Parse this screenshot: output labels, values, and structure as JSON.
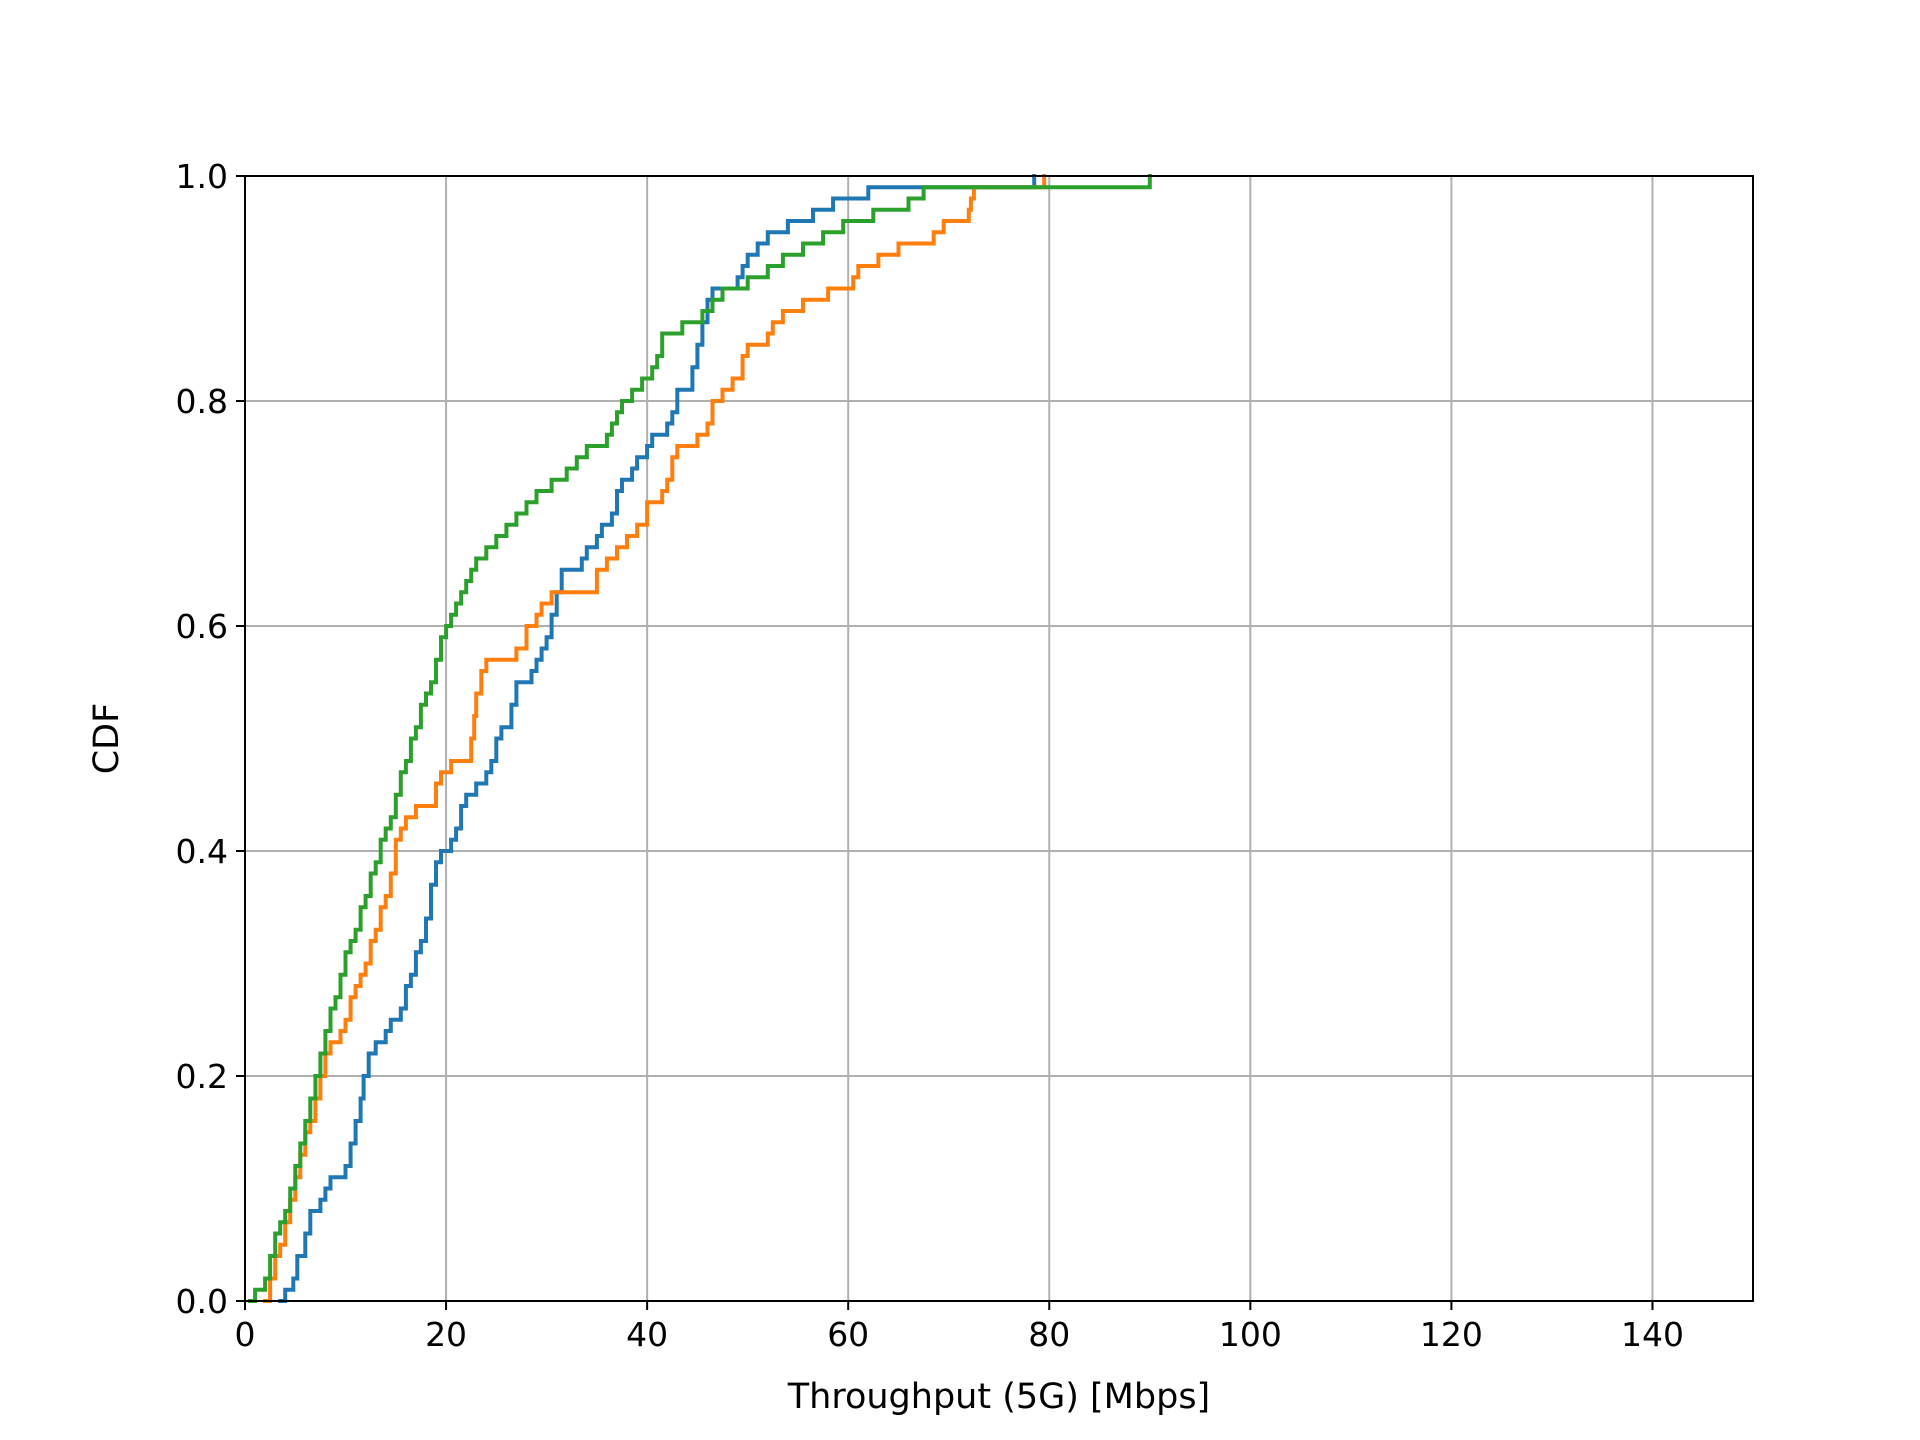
{
  "chart_data": {
    "type": "line",
    "step": true,
    "xlabel": "Throughput (5G) [Mbps]",
    "ylabel": "CDF",
    "xlim": [
      0,
      150
    ],
    "ylim": [
      0,
      1.0
    ],
    "xticks": [
      0,
      20,
      40,
      60,
      80,
      100,
      120,
      140
    ],
    "xtick_labels": [
      "0",
      "20",
      "40",
      "60",
      "80",
      "100",
      "120",
      "140"
    ],
    "yticks": [
      0.0,
      0.2,
      0.4,
      0.6,
      0.8,
      1.0
    ],
    "ytick_labels": [
      "0.0",
      "0.2",
      "0.4",
      "0.6",
      "0.8",
      "1.0"
    ],
    "grid": true,
    "colors": {
      "axis": "#000000",
      "grid": "#b0b0b0",
      "background": "#ffffff"
    },
    "series": [
      {
        "color": "#1f77b4",
        "points": [
          [
            3.5,
            0.0
          ],
          [
            4.0,
            0.01
          ],
          [
            4.8,
            0.02
          ],
          [
            5.2,
            0.04
          ],
          [
            6.0,
            0.06
          ],
          [
            6.5,
            0.08
          ],
          [
            7.5,
            0.09
          ],
          [
            8.0,
            0.1
          ],
          [
            8.5,
            0.11
          ],
          [
            10.0,
            0.12
          ],
          [
            10.5,
            0.14
          ],
          [
            11.0,
            0.16
          ],
          [
            11.5,
            0.18
          ],
          [
            11.8,
            0.2
          ],
          [
            12.3,
            0.22
          ],
          [
            13.0,
            0.23
          ],
          [
            14.0,
            0.24
          ],
          [
            14.5,
            0.25
          ],
          [
            15.5,
            0.26
          ],
          [
            16.0,
            0.28
          ],
          [
            16.5,
            0.29
          ],
          [
            17.0,
            0.31
          ],
          [
            17.5,
            0.32
          ],
          [
            18.0,
            0.34
          ],
          [
            18.5,
            0.37
          ],
          [
            19.0,
            0.39
          ],
          [
            19.5,
            0.4
          ],
          [
            20.5,
            0.41
          ],
          [
            21.0,
            0.42
          ],
          [
            21.5,
            0.44
          ],
          [
            22.0,
            0.45
          ],
          [
            23.0,
            0.46
          ],
          [
            24.0,
            0.47
          ],
          [
            24.5,
            0.48
          ],
          [
            25.0,
            0.5
          ],
          [
            25.5,
            0.51
          ],
          [
            26.5,
            0.53
          ],
          [
            27.0,
            0.55
          ],
          [
            28.5,
            0.56
          ],
          [
            29.0,
            0.57
          ],
          [
            29.5,
            0.58
          ],
          [
            30.0,
            0.59
          ],
          [
            30.5,
            0.61
          ],
          [
            31.0,
            0.63
          ],
          [
            31.5,
            0.65
          ],
          [
            33.5,
            0.66
          ],
          [
            34.0,
            0.67
          ],
          [
            35.0,
            0.68
          ],
          [
            35.5,
            0.69
          ],
          [
            36.5,
            0.7
          ],
          [
            37.0,
            0.72
          ],
          [
            37.5,
            0.73
          ],
          [
            38.5,
            0.74
          ],
          [
            39.0,
            0.75
          ],
          [
            40.0,
            0.76
          ],
          [
            40.5,
            0.77
          ],
          [
            42.0,
            0.78
          ],
          [
            42.5,
            0.79
          ],
          [
            43.0,
            0.81
          ],
          [
            44.5,
            0.83
          ],
          [
            45.0,
            0.85
          ],
          [
            45.5,
            0.87
          ],
          [
            46.0,
            0.89
          ],
          [
            46.5,
            0.9
          ],
          [
            49.0,
            0.91
          ],
          [
            49.5,
            0.92
          ],
          [
            50.0,
            0.93
          ],
          [
            51.0,
            0.94
          ],
          [
            52.0,
            0.95
          ],
          [
            54.0,
            0.96
          ],
          [
            56.5,
            0.97
          ],
          [
            58.5,
            0.98
          ],
          [
            62.0,
            0.99
          ],
          [
            70.0,
            0.99
          ],
          [
            78.5,
            1.0
          ]
        ]
      },
      {
        "color": "#ff7f0e",
        "points": [
          [
            2.0,
            0.0
          ],
          [
            2.5,
            0.02
          ],
          [
            3.0,
            0.04
          ],
          [
            3.5,
            0.05
          ],
          [
            4.0,
            0.07
          ],
          [
            4.5,
            0.09
          ],
          [
            5.0,
            0.11
          ],
          [
            5.5,
            0.13
          ],
          [
            6.0,
            0.15
          ],
          [
            6.5,
            0.16
          ],
          [
            7.0,
            0.18
          ],
          [
            7.5,
            0.2
          ],
          [
            8.0,
            0.22
          ],
          [
            8.5,
            0.23
          ],
          [
            9.5,
            0.24
          ],
          [
            10.0,
            0.25
          ],
          [
            10.5,
            0.27
          ],
          [
            11.0,
            0.28
          ],
          [
            11.5,
            0.29
          ],
          [
            12.0,
            0.3
          ],
          [
            12.5,
            0.32
          ],
          [
            13.0,
            0.33
          ],
          [
            13.5,
            0.35
          ],
          [
            14.0,
            0.36
          ],
          [
            14.5,
            0.38
          ],
          [
            15.0,
            0.41
          ],
          [
            15.5,
            0.42
          ],
          [
            16.0,
            0.43
          ],
          [
            17.0,
            0.44
          ],
          [
            19.0,
            0.46
          ],
          [
            19.5,
            0.47
          ],
          [
            20.5,
            0.48
          ],
          [
            22.5,
            0.5
          ],
          [
            22.8,
            0.52
          ],
          [
            23.0,
            0.54
          ],
          [
            23.5,
            0.56
          ],
          [
            24.0,
            0.57
          ],
          [
            27.0,
            0.58
          ],
          [
            28.0,
            0.6
          ],
          [
            29.0,
            0.61
          ],
          [
            29.5,
            0.62
          ],
          [
            30.5,
            0.63
          ],
          [
            35.0,
            0.65
          ],
          [
            36.0,
            0.66
          ],
          [
            37.0,
            0.67
          ],
          [
            38.0,
            0.68
          ],
          [
            39.0,
            0.69
          ],
          [
            40.0,
            0.71
          ],
          [
            41.5,
            0.72
          ],
          [
            42.0,
            0.73
          ],
          [
            42.5,
            0.75
          ],
          [
            43.0,
            0.76
          ],
          [
            45.0,
            0.77
          ],
          [
            46.0,
            0.78
          ],
          [
            46.5,
            0.8
          ],
          [
            47.5,
            0.81
          ],
          [
            48.5,
            0.82
          ],
          [
            49.5,
            0.84
          ],
          [
            50.0,
            0.85
          ],
          [
            52.0,
            0.86
          ],
          [
            52.5,
            0.87
          ],
          [
            53.5,
            0.88
          ],
          [
            55.5,
            0.89
          ],
          [
            58.0,
            0.9
          ],
          [
            60.5,
            0.91
          ],
          [
            61.0,
            0.92
          ],
          [
            63.0,
            0.93
          ],
          [
            65.0,
            0.94
          ],
          [
            68.5,
            0.95
          ],
          [
            69.5,
            0.96
          ],
          [
            72.0,
            0.97
          ],
          [
            72.2,
            0.98
          ],
          [
            72.5,
            0.99
          ],
          [
            78.0,
            0.99
          ],
          [
            79.5,
            1.0
          ]
        ]
      },
      {
        "color": "#2ca02c",
        "points": [
          [
            0.5,
            0.0
          ],
          [
            1.0,
            0.01
          ],
          [
            2.0,
            0.02
          ],
          [
            2.5,
            0.04
          ],
          [
            3.0,
            0.06
          ],
          [
            3.5,
            0.07
          ],
          [
            4.0,
            0.08
          ],
          [
            4.5,
            0.1
          ],
          [
            5.0,
            0.12
          ],
          [
            5.5,
            0.14
          ],
          [
            6.0,
            0.16
          ],
          [
            6.5,
            0.18
          ],
          [
            7.0,
            0.2
          ],
          [
            7.5,
            0.22
          ],
          [
            8.0,
            0.24
          ],
          [
            8.5,
            0.26
          ],
          [
            9.0,
            0.27
          ],
          [
            9.5,
            0.29
          ],
          [
            10.0,
            0.31
          ],
          [
            10.5,
            0.32
          ],
          [
            11.0,
            0.33
          ],
          [
            11.5,
            0.35
          ],
          [
            12.0,
            0.36
          ],
          [
            12.5,
            0.38
          ],
          [
            13.0,
            0.39
          ],
          [
            13.5,
            0.41
          ],
          [
            14.0,
            0.42
          ],
          [
            14.5,
            0.43
          ],
          [
            15.0,
            0.45
          ],
          [
            15.5,
            0.47
          ],
          [
            16.0,
            0.48
          ],
          [
            16.5,
            0.5
          ],
          [
            17.0,
            0.51
          ],
          [
            17.5,
            0.53
          ],
          [
            18.0,
            0.54
          ],
          [
            18.5,
            0.55
          ],
          [
            19.0,
            0.57
          ],
          [
            19.5,
            0.59
          ],
          [
            20.0,
            0.6
          ],
          [
            20.5,
            0.61
          ],
          [
            21.0,
            0.62
          ],
          [
            21.5,
            0.63
          ],
          [
            22.0,
            0.64
          ],
          [
            22.5,
            0.65
          ],
          [
            23.0,
            0.66
          ],
          [
            24.0,
            0.67
          ],
          [
            25.0,
            0.68
          ],
          [
            26.0,
            0.69
          ],
          [
            27.0,
            0.7
          ],
          [
            28.0,
            0.71
          ],
          [
            29.0,
            0.72
          ],
          [
            30.5,
            0.73
          ],
          [
            32.0,
            0.74
          ],
          [
            33.0,
            0.75
          ],
          [
            34.0,
            0.76
          ],
          [
            36.0,
            0.77
          ],
          [
            36.5,
            0.78
          ],
          [
            37.0,
            0.79
          ],
          [
            37.5,
            0.8
          ],
          [
            38.5,
            0.81
          ],
          [
            39.5,
            0.82
          ],
          [
            40.5,
            0.83
          ],
          [
            41.0,
            0.84
          ],
          [
            41.5,
            0.86
          ],
          [
            43.5,
            0.87
          ],
          [
            45.5,
            0.88
          ],
          [
            46.5,
            0.89
          ],
          [
            47.5,
            0.9
          ],
          [
            50.0,
            0.91
          ],
          [
            52.0,
            0.92
          ],
          [
            53.5,
            0.93
          ],
          [
            55.5,
            0.94
          ],
          [
            57.5,
            0.95
          ],
          [
            59.5,
            0.96
          ],
          [
            62.5,
            0.97
          ],
          [
            66.0,
            0.98
          ],
          [
            67.5,
            0.99
          ],
          [
            80.0,
            0.99
          ],
          [
            90.0,
            1.0
          ]
        ]
      }
    ]
  }
}
